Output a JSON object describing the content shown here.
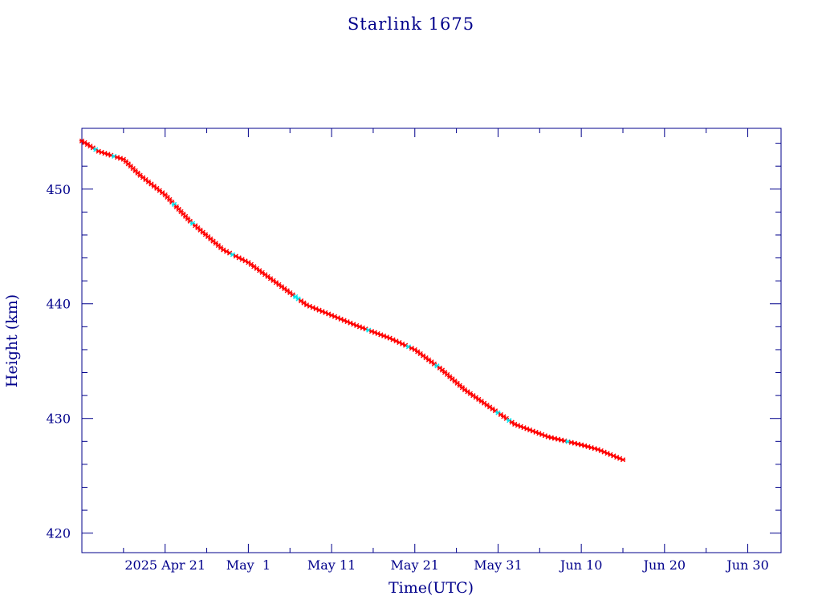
{
  "chart_data": {
    "type": "line",
    "title": "Starlink 1675",
    "xlabel": "Time(UTC)",
    "ylabel": "Height (km)",
    "x_ticks": [
      {
        "date": "2025-04-21",
        "label": "2025 Apr 21"
      },
      {
        "date": "2025-05-01",
        "label": "May  1"
      },
      {
        "date": "2025-05-11",
        "label": "May 11"
      },
      {
        "date": "2025-05-21",
        "label": "May 21"
      },
      {
        "date": "2025-05-31",
        "label": "May 31"
      },
      {
        "date": "2025-06-10",
        "label": "Jun 10"
      },
      {
        "date": "2025-06-20",
        "label": "Jun 20"
      },
      {
        "date": "2025-06-30",
        "label": "Jun 30"
      }
    ],
    "xlim": [
      "2025-04-11",
      "2025-07-04"
    ],
    "y_ticks": [
      420,
      430,
      440,
      450
    ],
    "ylim": [
      418.3,
      455.3
    ],
    "grid": false,
    "colors": {
      "axes": "#00008b",
      "line": "#000000",
      "markers": "#ff0000",
      "highlight_markers": "#00e5ee"
    },
    "series": [
      {
        "points": [
          {
            "x": "2025-04-11",
            "y": 454.2
          },
          {
            "x": "2025-04-13",
            "y": 453.3
          },
          {
            "x": "2025-04-16",
            "y": 452.6
          },
          {
            "x": "2025-04-18",
            "y": 451.2
          },
          {
            "x": "2025-04-21",
            "y": 449.5
          },
          {
            "x": "2025-04-24",
            "y": 447.2
          },
          {
            "x": "2025-04-28",
            "y": 444.7
          },
          {
            "x": "2025-05-01",
            "y": 443.6
          },
          {
            "x": "2025-05-05",
            "y": 441.5
          },
          {
            "x": "2025-05-08",
            "y": 439.9
          },
          {
            "x": "2025-05-11",
            "y": 439.0
          },
          {
            "x": "2025-05-14",
            "y": 438.1
          },
          {
            "x": "2025-05-18",
            "y": 437.0
          },
          {
            "x": "2025-05-21",
            "y": 436.0
          },
          {
            "x": "2025-05-24",
            "y": 434.4
          },
          {
            "x": "2025-05-27",
            "y": 432.5
          },
          {
            "x": "2025-05-30",
            "y": 431.0
          },
          {
            "x": "2025-06-02",
            "y": 429.5
          },
          {
            "x": "2025-06-06",
            "y": 428.4
          },
          {
            "x": "2025-06-10",
            "y": 427.7
          },
          {
            "x": "2025-06-12",
            "y": 427.3
          },
          {
            "x": "2025-06-15",
            "y": 426.4
          }
        ]
      }
    ]
  }
}
